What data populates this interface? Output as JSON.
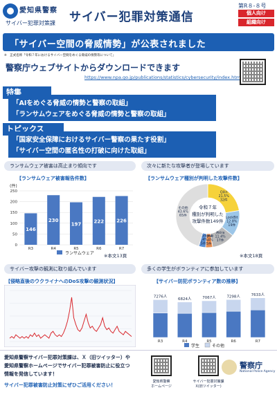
{
  "header": {
    "org_name": "愛知県警察",
    "org_sub": "サイバー犯罪対策課",
    "title": "サイバー犯罪対策通信",
    "issue": "第R８-８号",
    "tags": [
      "個人向け",
      "組織向け"
    ]
  },
  "banner": {
    "text": "「サイバー空間の脅威情勢」が公表されました",
    "note": "※　正式名称「令和７年におけるサイバー空間をめぐる脅威の情勢等について」"
  },
  "download": {
    "title": "警察庁ウェブサイトからダウンロードできます",
    "url": "https://www.npa.go.jp/publications/statistics/cybersecurity/index.html"
  },
  "features": {
    "label": "特集",
    "items": [
      "「AIをめぐる脅威の情勢と警察の取組」",
      "「ランサムウェアをめぐる脅威の情勢と警察の取組」"
    ]
  },
  "topics": {
    "label": "トピックス",
    "items": [
      "「国家安全保障におけるサイバー警察の果たす役割」",
      "「サイバー空間の匿名性の打破に向けた取組」"
    ]
  },
  "bar_panel": {
    "pill": "ランサムウェア被害は高止まり傾向です",
    "title": "【ランサムウェア被害報告件数】",
    "unit": "(件)",
    "legend": "ランサムウェア",
    "note": "※本文13頁"
  },
  "pie_panel": {
    "pill": "次々に新たな攻撃者が登場しています",
    "title": "【ランサムウェア種別が判明した攻撃件数】",
    "center_lines": [
      "令和７年",
      "種別が判明した",
      "攻撃件数149件"
    ],
    "labels": {
      "qilin": "Qilin\n21.5%\n32件",
      "lockbit": "LockBit\n12.8%\n19件",
      "akira": "Akira\n11.4%\n17件",
      "lynx": "Lynx\n3.4%\n5件",
      "ransomhub": "RansomHub\n3.4%\n5件",
      "other": "その他\n43.6%\n65件"
    },
    "note": "※本文18頁"
  },
  "line_panel": {
    "pill": "サイバー攻撃の観測に取り組んでいます",
    "title": "【侵略直後のウクライナへのDoS攻撃の観測状況】"
  },
  "stack_panel": {
    "pill": "多くの学生がボランティアに参加しています",
    "title": "【サイバー防犯ボランティア数の推移】",
    "legend": [
      "学生",
      "その他"
    ]
  },
  "footer": {
    "lines": [
      "愛知県警察サイバー犯罪対策課は、Ｘ（旧ツイッター）や",
      "愛知県警察ホームページでサイバー犯罪被害防止に役立つ",
      "情報を発信しています！",
      "サイバー犯罪被害防止対策にぜひご活用ください！"
    ],
    "qr1_label": "愛知県警察\nホームページ",
    "qr2_label": "サイバー犯罪対策課\nX(旧ツイッター)",
    "agency": "警察庁",
    "agency_en": "National Police Agency"
  },
  "chart_data": [
    {
      "type": "bar",
      "title": "【ランサムウェア被害報告件数】",
      "categories": [
        "R3",
        "R4",
        "R5",
        "R6",
        "R7"
      ],
      "series": [
        {
          "name": "ランサムウェア",
          "values": [
            146,
            230,
            197,
            222,
            226
          ]
        }
      ],
      "ylabel": "(件)",
      "ylim": [
        0,
        250
      ],
      "yticks": [
        0,
        50,
        100,
        150,
        200,
        250
      ],
      "color": "#4a78c2"
    },
    {
      "type": "pie",
      "title": "【ランサムウェア種別が判明した攻撃件数】",
      "slices": [
        {
          "name": "Qilin",
          "percent": 21.5,
          "count": 32,
          "color": "#f6d23a"
        },
        {
          "name": "LockBit",
          "percent": 12.8,
          "count": 19,
          "color": "#9cc6e8"
        },
        {
          "name": "Akira",
          "percent": 11.4,
          "count": 17,
          "color": "#b9b9b9"
        },
        {
          "name": "Lynx",
          "percent": 3.4,
          "count": 5,
          "color": "#e78d4f"
        },
        {
          "name": "RansomHub",
          "percent": 3.4,
          "count": 5,
          "color": "#5b8fd4"
        },
        {
          "name": "その他",
          "percent": 43.6,
          "count": 65,
          "color": "#dedede"
        }
      ]
    },
    {
      "type": "line",
      "title": "【侵略直後のウクライナへのDoS攻撃の観測状況】",
      "values": [
        2,
        3,
        2,
        4,
        3,
        2,
        3,
        2,
        3,
        2,
        4,
        3,
        5,
        3,
        4,
        2,
        3,
        4,
        3,
        2,
        5,
        6,
        4,
        3,
        4,
        3,
        5,
        8,
        12,
        18,
        26,
        14,
        10,
        7,
        6,
        8,
        12,
        16,
        11,
        8,
        9,
        7,
        6,
        8,
        10,
        14,
        9,
        7,
        8,
        6,
        5,
        7,
        9,
        6,
        5,
        4,
        6,
        5,
        4,
        3
      ],
      "ylim": [
        0,
        30
      ],
      "color": "#d9262c"
    },
    {
      "type": "bar",
      "title": "【サイバー防犯ボランティア数の推移】",
      "categories": [
        "R3",
        "R4",
        "R5",
        "R6",
        "R7"
      ],
      "totals": [
        "7276人",
        "6824人",
        "7067人",
        "7298人",
        "7633人"
      ],
      "series": [
        {
          "name": "学生",
          "values": [
            4700,
            4650,
            4800,
            5050,
            5300
          ]
        },
        {
          "name": "その他",
          "values": [
            2576,
            2174,
            2267,
            2248,
            2333
          ]
        }
      ],
      "ylim": [
        0,
        8000
      ],
      "colors": [
        "#4a78c2",
        "#c8d6ee"
      ]
    }
  ]
}
